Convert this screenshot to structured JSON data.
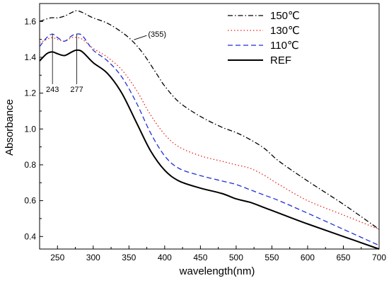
{
  "chart_data": {
    "type": "line",
    "title": "",
    "xlabel": "wavelength(nm)",
    "ylabel": "Absorbance",
    "xlim": [
      225,
      700
    ],
    "ylim": [
      0.33,
      1.7
    ],
    "x_ticks": [
      250,
      300,
      350,
      400,
      450,
      500,
      550,
      600,
      650,
      700
    ],
    "x_tick_labels": [
      "250",
      "300",
      "350",
      "400",
      "450",
      "500",
      "550",
      "600",
      "650",
      "700"
    ],
    "y_ticks": [
      0.4,
      0.6,
      0.8,
      1.0,
      1.2,
      1.4,
      1.6
    ],
    "y_tick_labels": [
      "0.4",
      "0.6",
      "0.8",
      "1.0",
      "1.2",
      "1.4",
      "1.6"
    ],
    "grid": false,
    "legend_position": "top-right",
    "series": [
      {
        "name": "150℃",
        "color": "#000000",
        "dash": "dash-dot",
        "x": [
          225,
          240,
          250,
          260,
          270,
          277,
          285,
          290,
          300,
          320,
          340,
          355,
          370,
          390,
          400,
          420,
          450,
          480,
          500,
          520,
          540,
          560,
          600,
          650,
          700
        ],
        "y": [
          1.6,
          1.62,
          1.62,
          1.63,
          1.65,
          1.66,
          1.65,
          1.64,
          1.62,
          1.59,
          1.54,
          1.49,
          1.42,
          1.3,
          1.24,
          1.15,
          1.07,
          1.01,
          0.98,
          0.94,
          0.89,
          0.82,
          0.71,
          0.58,
          0.44
        ]
      },
      {
        "name": "130℃",
        "color": "#e8261e",
        "dash": "dot",
        "x": [
          225,
          235,
          243,
          250,
          260,
          270,
          277,
          285,
          300,
          320,
          340,
          360,
          380,
          400,
          420,
          450,
          480,
          500,
          520,
          540,
          560,
          600,
          650,
          700
        ],
        "y": [
          1.48,
          1.5,
          1.51,
          1.5,
          1.49,
          1.51,
          1.51,
          1.5,
          1.45,
          1.4,
          1.33,
          1.22,
          1.08,
          0.97,
          0.9,
          0.85,
          0.82,
          0.8,
          0.78,
          0.74,
          0.69,
          0.6,
          0.52,
          0.44
        ]
      },
      {
        "name": "110℃",
        "color": "#1e2fd6",
        "dash": "dash",
        "x": [
          225,
          235,
          243,
          250,
          260,
          270,
          277,
          285,
          300,
          320,
          340,
          360,
          380,
          400,
          420,
          450,
          480,
          500,
          520,
          540,
          560,
          600,
          650,
          700
        ],
        "y": [
          1.46,
          1.51,
          1.53,
          1.51,
          1.49,
          1.52,
          1.53,
          1.52,
          1.44,
          1.38,
          1.29,
          1.15,
          0.98,
          0.85,
          0.78,
          0.74,
          0.71,
          0.69,
          0.66,
          0.63,
          0.6,
          0.53,
          0.44,
          0.35
        ]
      },
      {
        "name": "REF",
        "color": "#000000",
        "dash": "solid",
        "x": [
          225,
          235,
          243,
          250,
          260,
          270,
          277,
          285,
          300,
          320,
          340,
          360,
          380,
          400,
          420,
          450,
          480,
          500,
          520,
          540,
          560,
          600,
          650,
          700
        ],
        "y": [
          1.38,
          1.42,
          1.43,
          1.42,
          1.41,
          1.43,
          1.44,
          1.43,
          1.37,
          1.31,
          1.2,
          1.04,
          0.88,
          0.77,
          0.71,
          0.67,
          0.64,
          0.61,
          0.59,
          0.56,
          0.53,
          0.47,
          0.4,
          0.33
        ]
      }
    ],
    "annotations": [
      {
        "text": "243",
        "x": 243,
        "y": 1.53
      },
      {
        "text": "277",
        "x": 277,
        "y": 1.53
      },
      {
        "text": "(355)",
        "x": 355,
        "y": 1.49
      }
    ]
  }
}
